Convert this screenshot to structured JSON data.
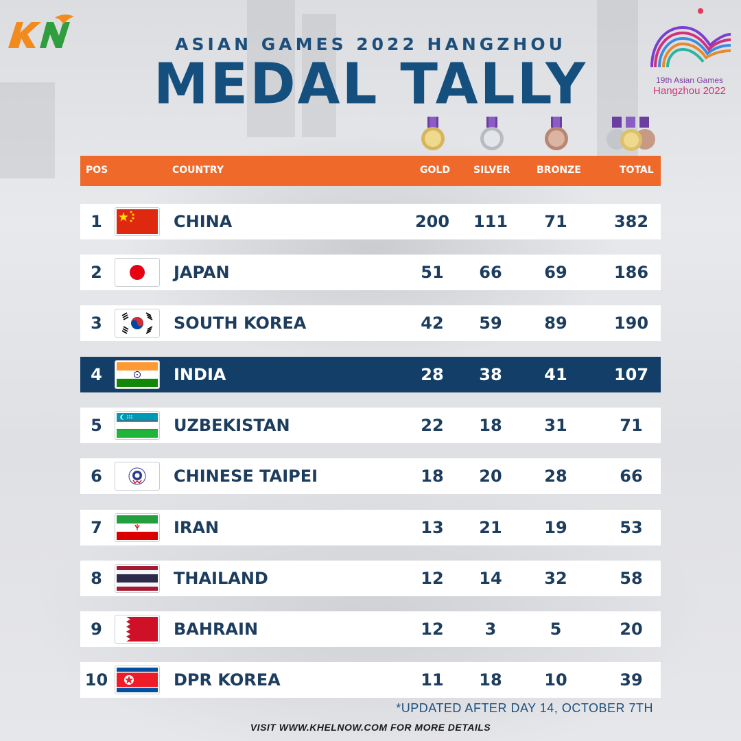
{
  "brand": {
    "logo_text": "KN"
  },
  "header": {
    "subtitle": "ASIAN GAMES 2022 HANGZHOU",
    "title": "MEDAL TALLY"
  },
  "games_logo": {
    "line1": "19th Asian Games",
    "line2": "Hangzhou 2022"
  },
  "table": {
    "columns": {
      "pos": "POS",
      "country": "COUNTRY",
      "gold": "GOLD",
      "silver": "SILVER",
      "bronze": "BRONZE",
      "total": "TOTAL"
    },
    "rows": [
      {
        "pos": "1",
        "country": "CHINA",
        "gold": "200",
        "silver": "111",
        "bronze": "71",
        "total": "382",
        "flag": "china-flag-icon"
      },
      {
        "pos": "2",
        "country": "JAPAN",
        "gold": "51",
        "silver": "66",
        "bronze": "69",
        "total": "186",
        "flag": "japan-flag-icon"
      },
      {
        "pos": "3",
        "country": "SOUTH KOREA",
        "gold": "42",
        "silver": "59",
        "bronze": "89",
        "total": "190",
        "flag": "south-korea-flag-icon"
      },
      {
        "pos": "4",
        "country": "INDIA",
        "gold": "28",
        "silver": "38",
        "bronze": "41",
        "total": "107",
        "flag": "india-flag-icon"
      },
      {
        "pos": "5",
        "country": "UZBEKISTAN",
        "gold": "22",
        "silver": "18",
        "bronze": "31",
        "total": "71",
        "flag": "uzbekistan-flag-icon"
      },
      {
        "pos": "6",
        "country": "CHINESE TAIPEI",
        "gold": "18",
        "silver": "20",
        "bronze": "28",
        "total": "66",
        "flag": "chinese-taipei-flag-icon"
      },
      {
        "pos": "7",
        "country": "IRAN",
        "gold": "13",
        "silver": "21",
        "bronze": "19",
        "total": "53",
        "flag": "iran-flag-icon"
      },
      {
        "pos": "8",
        "country": "THAILAND",
        "gold": "12",
        "silver": "14",
        "bronze": "32",
        "total": "58",
        "flag": "thailand-flag-icon"
      },
      {
        "pos": "9",
        "country": "BAHRAIN",
        "gold": "12",
        "silver": "3",
        "bronze": "5",
        "total": "20",
        "flag": "bahrain-flag-icon"
      },
      {
        "pos": "10",
        "country": "DPR KOREA",
        "gold": "11",
        "silver": "18",
        "bronze": "10",
        "total": "39",
        "flag": "dpr-korea-flag-icon"
      }
    ]
  },
  "notes": {
    "updated": "*UPDATED AFTER DAY 14, OCTOBER 7TH",
    "footer": "VISIT WWW.KHELNOW.COM FOR MORE DETAILS"
  },
  "colors": {
    "header_bar": "#ef6a2a",
    "title_blue": "#144f7e",
    "highlight_row": "#133e68",
    "brand_green": "#2e9e3e",
    "brand_orange": "#f28a1e"
  }
}
